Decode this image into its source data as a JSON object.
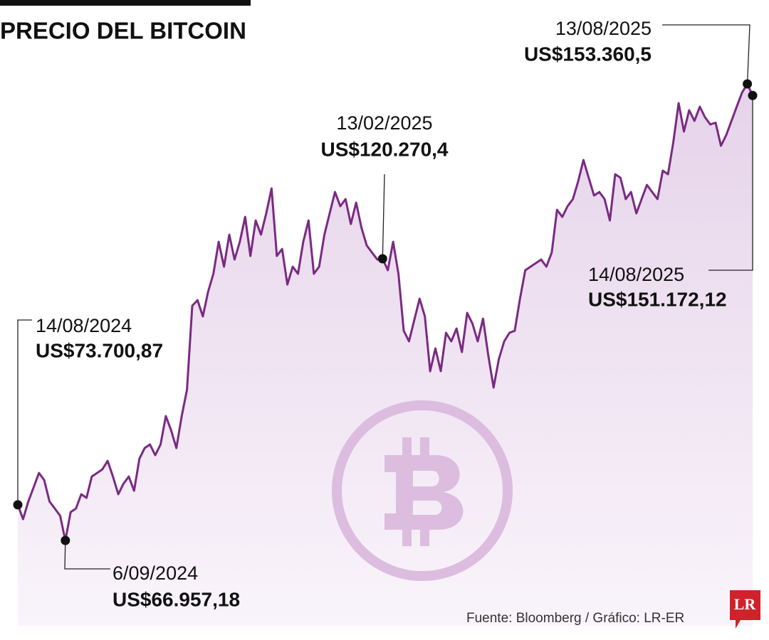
{
  "chart_data": {
    "type": "line",
    "title": "PRECIO DEL BITCOIN",
    "source": "Fuente: Bloomberg / Gráfico: LR-ER",
    "logo": "LR",
    "color": "#7a2a82",
    "values": [
      73700.87,
      70985,
      74350,
      77040,
      79730,
      78390,
      74350,
      73000,
      71660,
      66957.18,
      72330,
      73000,
      75700,
      75020,
      79060,
      79730,
      80410,
      82020,
      79060,
      75700,
      77715,
      79060,
      76370,
      82430,
      84445,
      85120,
      83100,
      85120,
      90500,
      87810,
      84445,
      90500,
      95480,
      111365,
      112440,
      109350,
      114060,
      117420,
      123480,
      118770,
      124825,
      120115,
      123480,
      128190,
      120790,
      127520,
      124825,
      128860,
      133575,
      120790,
      122130,
      115400,
      118770,
      117420,
      123480,
      127520,
      117420,
      118770,
      124825,
      128860,
      132900,
      130210,
      131555,
      126845,
      130880,
      126170,
      122800,
      121460,
      120115,
      120270.4,
      118095,
      123480,
      117420,
      106650,
      104635,
      108670,
      112710,
      109350,
      98980,
      103290,
      99000,
      106250,
      104635,
      107060,
      102615,
      110020,
      108000,
      104635,
      108940,
      101940,
      95890,
      101270,
      104635,
      106250,
      106650,
      112710,
      118095,
      118770,
      119440,
      120115,
      118770,
      121460,
      129535,
      128190,
      130210,
      131555,
      134920,
      138960,
      135590,
      132230,
      132900,
      131555,
      127520,
      136265,
      135590,
      131555,
      132900,
      128860,
      131555,
      134250,
      132900,
      131555,
      136940,
      136265,
      142320,
      149725,
      144340,
      148380,
      146360,
      149050,
      147030,
      145690,
      146030,
      141650,
      143670,
      146360,
      149050,
      151745,
      153360.5,
      151172.12
    ],
    "annotations": [
      {
        "date": "14/08/2024",
        "label": "US$73.700,87",
        "value": 73700.87
      },
      {
        "date": "6/09/2024",
        "label": "US$66.957,18",
        "value": 66957.18
      },
      {
        "date": "13/02/2025",
        "label": "US$120.270,4",
        "value": 120270.4
      },
      {
        "date": "13/08/2025",
        "label": "US$153.360,5",
        "value": 153360.5
      },
      {
        "date": "14/08/2025",
        "label": "US$151.172,12",
        "value": 151172.12
      }
    ]
  }
}
